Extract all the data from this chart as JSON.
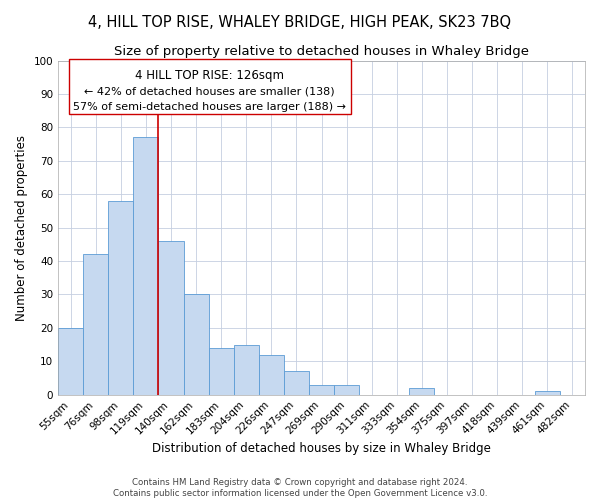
{
  "title": "4, HILL TOP RISE, WHALEY BRIDGE, HIGH PEAK, SK23 7BQ",
  "subtitle": "Size of property relative to detached houses in Whaley Bridge",
  "xlabel": "Distribution of detached houses by size in Whaley Bridge",
  "ylabel": "Number of detached properties",
  "bar_labels": [
    "55sqm",
    "76sqm",
    "98sqm",
    "119sqm",
    "140sqm",
    "162sqm",
    "183sqm",
    "204sqm",
    "226sqm",
    "247sqm",
    "269sqm",
    "290sqm",
    "311sqm",
    "333sqm",
    "354sqm",
    "375sqm",
    "397sqm",
    "418sqm",
    "439sqm",
    "461sqm",
    "482sqm"
  ],
  "bar_values": [
    20,
    42,
    58,
    77,
    46,
    30,
    14,
    15,
    12,
    7,
    3,
    3,
    0,
    0,
    2,
    0,
    0,
    0,
    0,
    1,
    0
  ],
  "bar_color": "#c6d9f0",
  "bar_edge_color": "#5b9bd5",
  "ylim": [
    0,
    100
  ],
  "yticks": [
    0,
    10,
    20,
    30,
    40,
    50,
    60,
    70,
    80,
    90,
    100
  ],
  "vline_x": 3.5,
  "vline_color": "#cc0000",
  "annotation_title": "4 HILL TOP RISE: 126sqm",
  "annotation_line1": "← 42% of detached houses are smaller (138)",
  "annotation_line2": "57% of semi-detached houses are larger (188) →",
  "annotation_box_color": "#ffffff",
  "annotation_box_edge": "#cc0000",
  "footer1": "Contains HM Land Registry data © Crown copyright and database right 2024.",
  "footer2": "Contains public sector information licensed under the Open Government Licence v3.0.",
  "background_color": "#ffffff",
  "grid_color": "#c5cfe0",
  "title_fontsize": 10.5,
  "subtitle_fontsize": 9.5,
  "axis_label_fontsize": 8.5,
  "tick_fontsize": 7.5,
  "annotation_title_fontsize": 8.5,
  "annotation_line_fontsize": 8.0
}
